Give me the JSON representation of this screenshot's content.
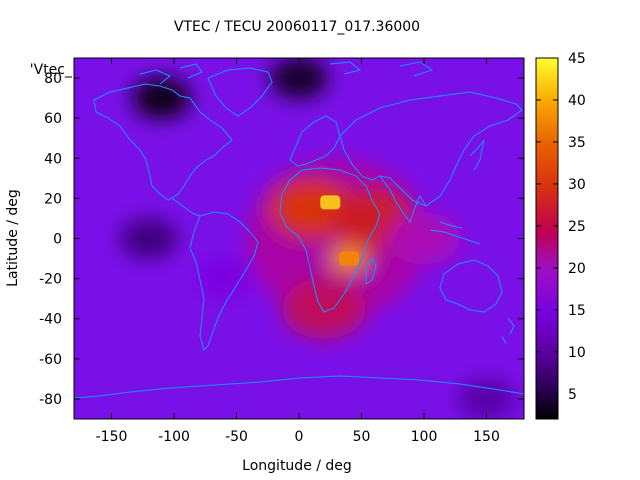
{
  "chart_data": {
    "type": "heatmap",
    "title": "VTEC / TECU 20060117_017.36000",
    "xlabel": "Longitude / deg",
    "ylabel": "Latitude / deg",
    "xlim": [
      -180,
      180
    ],
    "ylim": [
      -90,
      90
    ],
    "x_ticks": [
      "-150",
      "-100",
      "-50",
      "0",
      "50",
      "100",
      "150"
    ],
    "x_tick_values": [
      -150,
      -100,
      -50,
      0,
      50,
      100,
      150
    ],
    "y_ticks": [
      "80",
      "60",
      "40",
      "20",
      "0",
      "-20",
      "-40",
      "-60",
      "-80"
    ],
    "y_tick_values": [
      80,
      60,
      40,
      20,
      0,
      -20,
      -40,
      -60,
      -80
    ],
    "colorbar": {
      "min": 2,
      "max": 45,
      "ticks": [
        "5",
        "10",
        "15",
        "20",
        "25",
        "30",
        "35",
        "40",
        "45"
      ],
      "tick_values": [
        5,
        10,
        15,
        20,
        25,
        30,
        35,
        40,
        45
      ]
    },
    "legend_entry": "'Vtec_",
    "colormap": [
      "#000000",
      "#3a0070",
      "#7a00e0",
      "#9a20f0",
      "#b000a0",
      "#d02010",
      "#e85000",
      "#f8a000",
      "#ffff30"
    ],
    "coastline_color": "#1e90ff",
    "grid": false,
    "features": [
      {
        "lon": 25,
        "lat": 18,
        "value": 43
      },
      {
        "lon": 40,
        "lat": -10,
        "value": 38
      },
      {
        "lon": 10,
        "lat": 15,
        "value": 31
      },
      {
        "lon": 60,
        "lat": 10,
        "value": 28
      },
      {
        "lon": 20,
        "lat": -35,
        "value": 26
      },
      {
        "lon": 100,
        "lat": 0,
        "value": 22
      },
      {
        "lon": -60,
        "lat": -20,
        "value": 13
      },
      {
        "lon": -120,
        "lat": 0,
        "value": 8
      },
      {
        "lon": -110,
        "lat": 70,
        "value": 3
      },
      {
        "lon": 0,
        "lat": 80,
        "value": 4
      },
      {
        "lon": 150,
        "lat": -80,
        "value": 10
      }
    ]
  }
}
